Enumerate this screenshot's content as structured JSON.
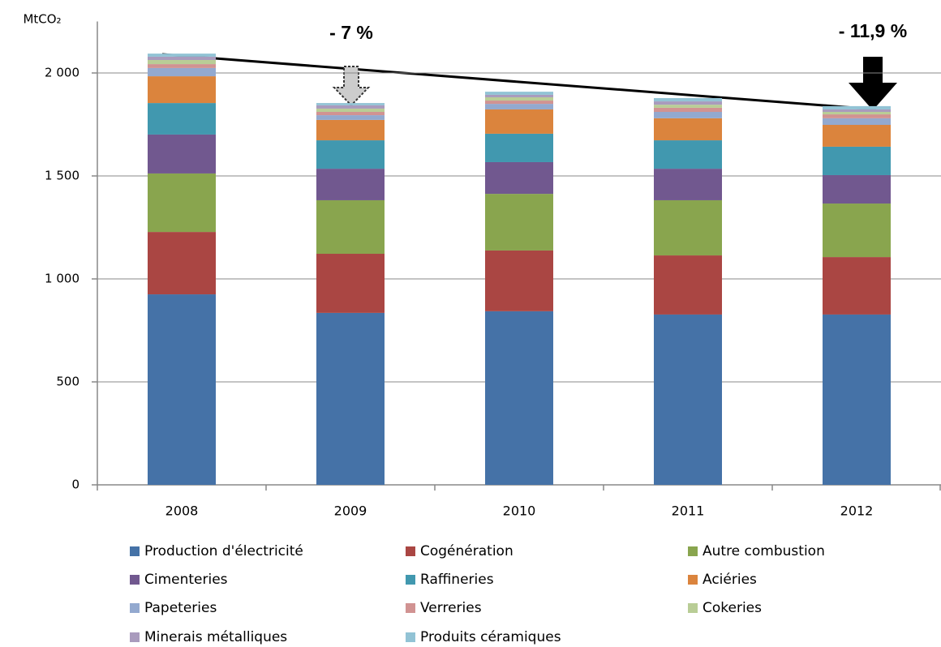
{
  "chart_data": {
    "type": "stacked_bar",
    "y_label": "MtCO₂",
    "annotations": [
      "- 7 %",
      "- 11,9 %"
    ],
    "categories": [
      "2008",
      "2009",
      "2010",
      "2011",
      "2012"
    ],
    "ylim": [
      0,
      2250
    ],
    "yticks": [
      0,
      500,
      {
        "value": 1000,
        "label": "1 000"
      },
      {
        "value": 1500,
        "label": "1 500"
      },
      {
        "value": 2000,
        "label": "2 000"
      }
    ],
    "series": [
      {
        "name": "Production d'électricité",
        "color": "#4572a7",
        "values": [
          925,
          835,
          843,
          827,
          827
        ]
      },
      {
        "name": "Cogénération",
        "color": "#aa4643",
        "values": [
          303,
          287,
          295,
          287,
          279
        ]
      },
      {
        "name": "Autre combustion",
        "color": "#89a54e",
        "values": [
          284,
          260,
          275,
          268,
          260
        ]
      },
      {
        "name": "Cimenteries",
        "color": "#71588f",
        "values": [
          189,
          153,
          154,
          153,
          138
        ]
      },
      {
        "name": "Raffineries",
        "color": "#4198af",
        "values": [
          153,
          138,
          138,
          138,
          138
        ]
      },
      {
        "name": "Aciéries",
        "color": "#db843d",
        "values": [
          130,
          99,
          118,
          107,
          106
        ]
      },
      {
        "name": "Papeteries",
        "color": "#93a9cf",
        "values": [
          40,
          23,
          27,
          31,
          32
        ]
      },
      {
        "name": "Verreries",
        "color": "#d19392",
        "values": [
          19,
          16,
          16,
          20,
          19
        ]
      },
      {
        "name": "Cokeries",
        "color": "#b9cd96",
        "values": [
          20,
          16,
          16,
          15,
          12
        ]
      },
      {
        "name": "Minerais métalliques",
        "color": "#a99bbd",
        "values": [
          16,
          16,
          12,
          16,
          12
        ]
      },
      {
        "name": "Produits céramiques",
        "color": "#92c3d5",
        "values": [
          15,
          11,
          15,
          16,
          16
        ]
      }
    ]
  }
}
